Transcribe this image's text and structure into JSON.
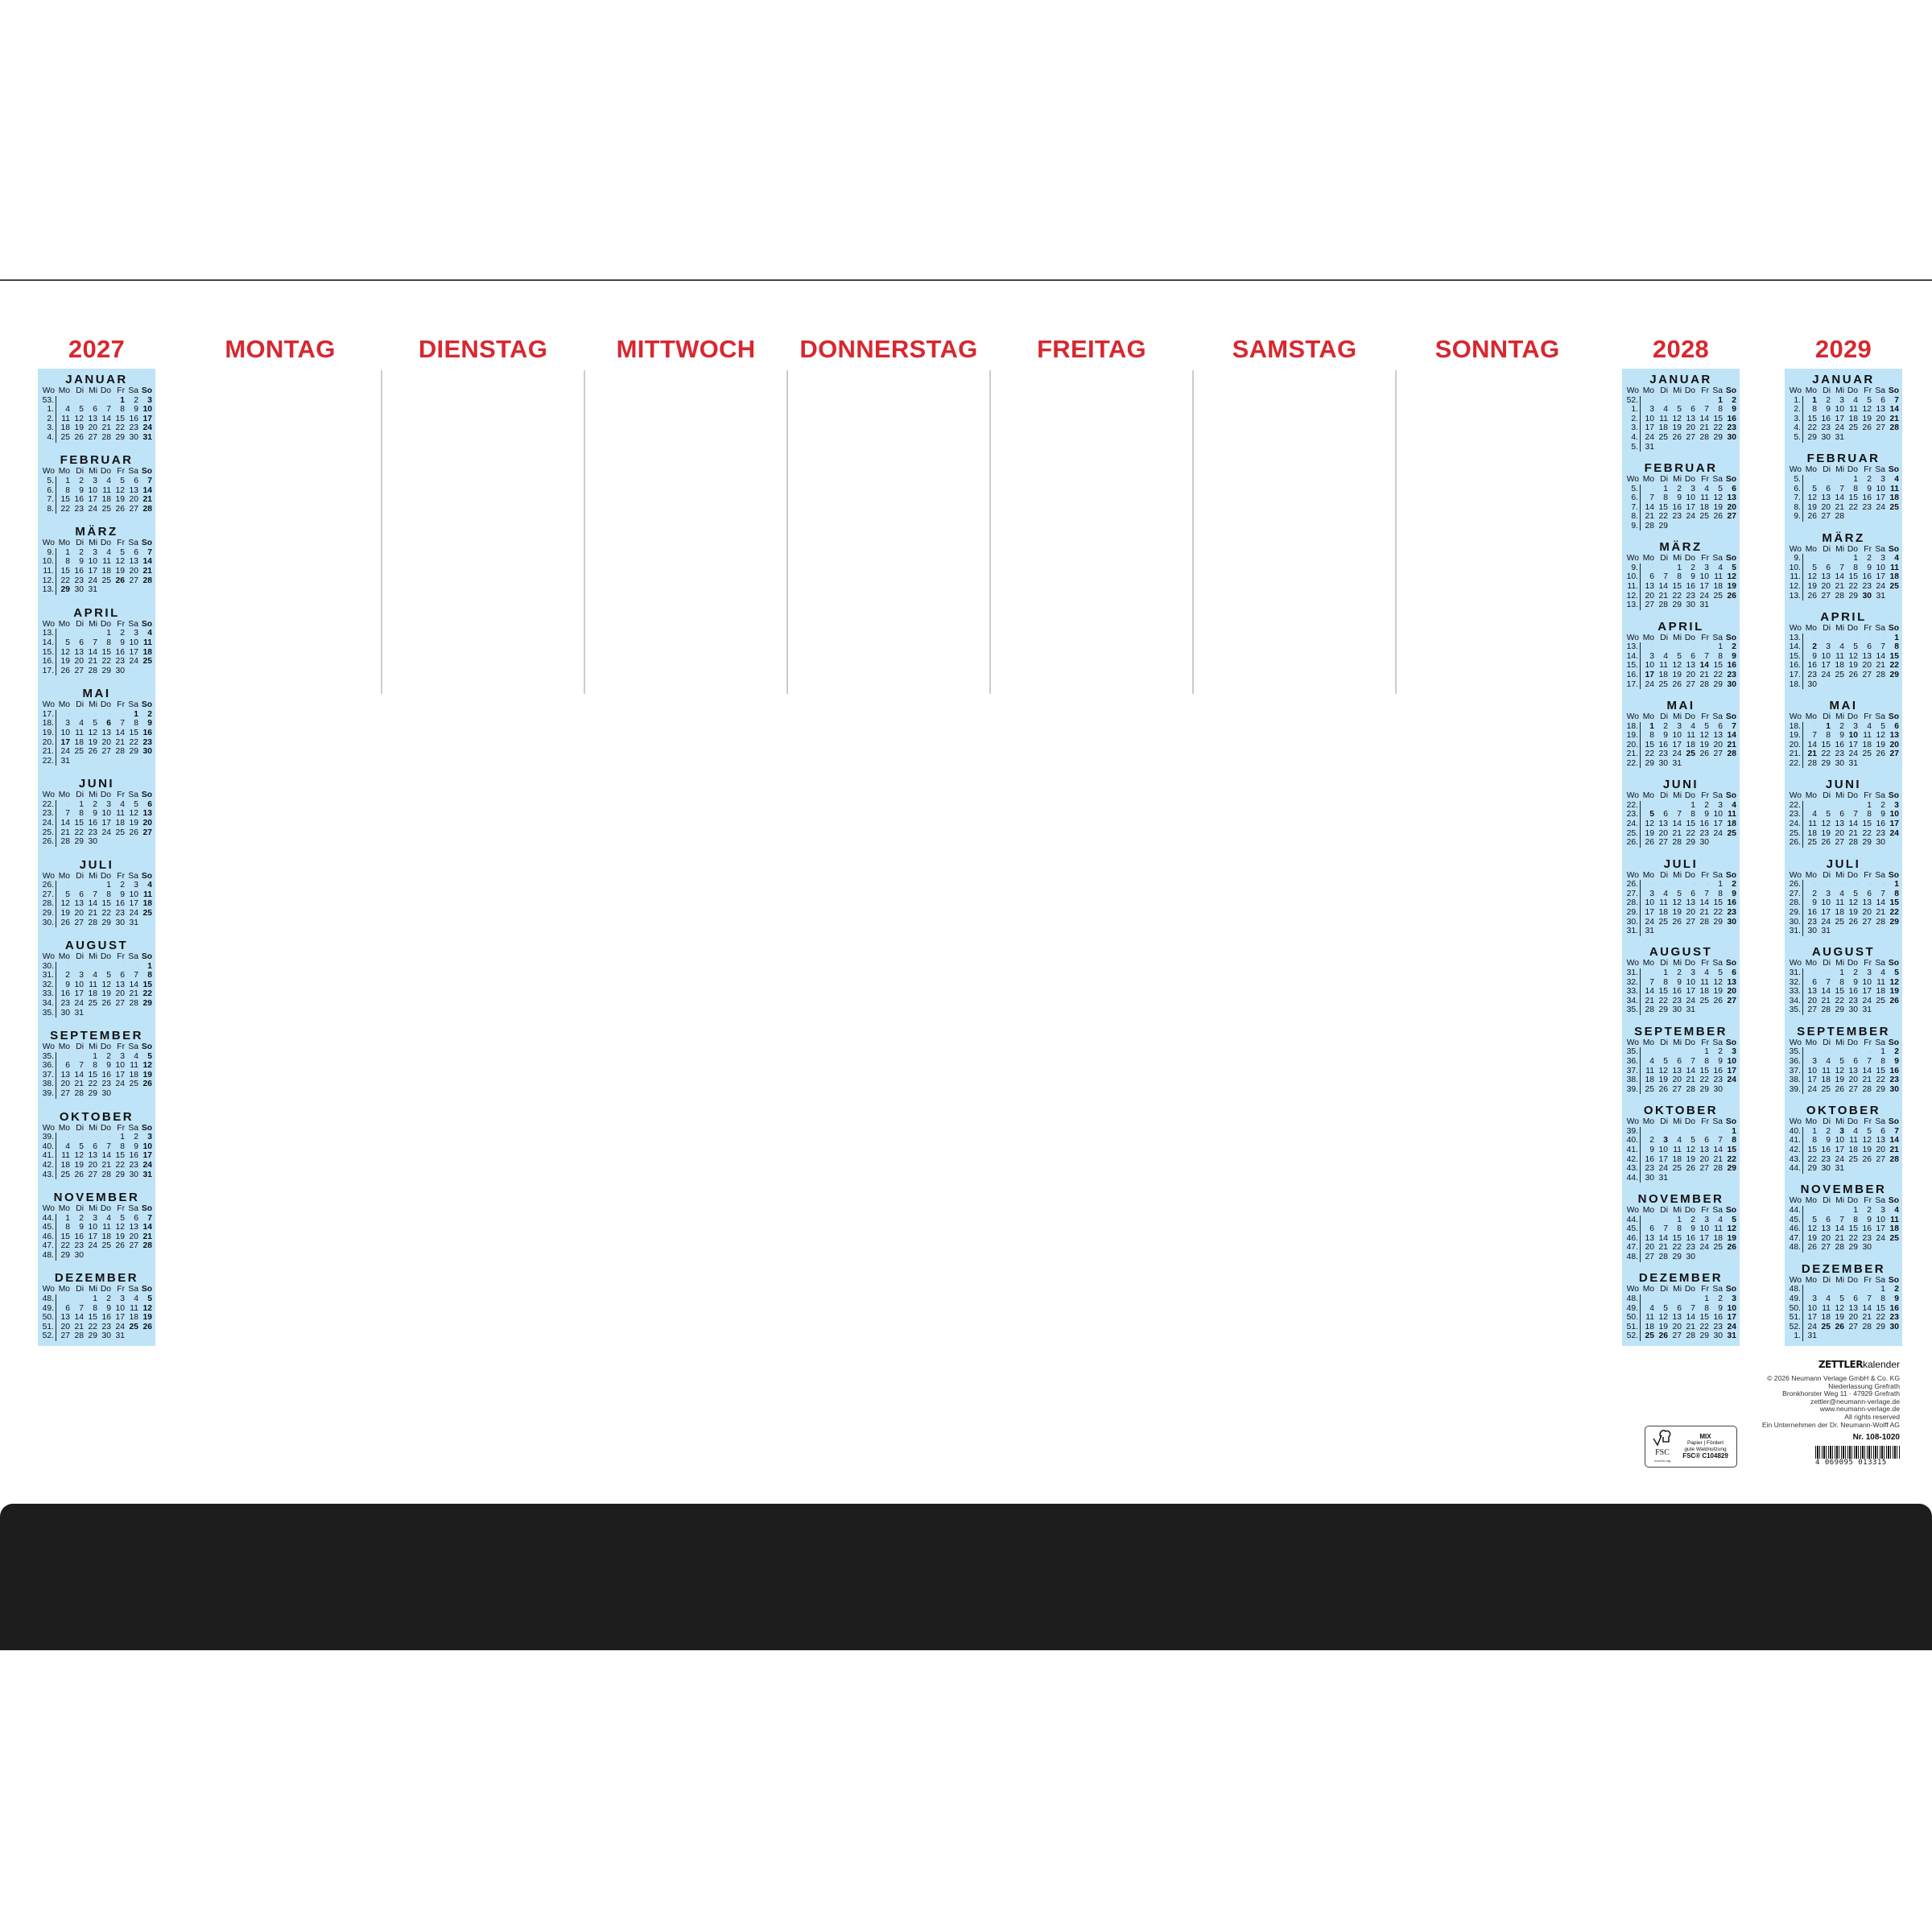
{
  "weekdays_header": [
    "MONTAG",
    "DIENSTAG",
    "MITTWOCH",
    "DONNERSTAG",
    "FREITAG",
    "SAMSTAG",
    "SONNTAG"
  ],
  "mini_header": [
    "Wo",
    "Mo",
    "Di",
    "Mi",
    "Do",
    "Fr",
    "Sa",
    "So"
  ],
  "colors": {
    "accent_red": "#d7282f",
    "calendar_blue": "#bfe3f7",
    "bar_black": "#1d1d1d"
  },
  "years": [
    {
      "year": "2027",
      "months": [
        {
          "name": "JANUAR",
          "bold": [
            1
          ],
          "rows": [
            "53 - - - - 1 2 3",
            "1 4 5 6 7 8 9 10",
            "2 11 12 13 14 15 16 17",
            "3 18 19 20 21 22 23 24",
            "4 25 26 27 28 29 30 31"
          ]
        },
        {
          "name": "FEBRUAR",
          "bold": [],
          "rows": [
            "5 1 2 3 4 5 6 7",
            "6 8 9 10 11 12 13 14",
            "7 15 16 17 18 19 20 21",
            "8 22 23 24 25 26 27 28"
          ]
        },
        {
          "name": "MÄRZ",
          "bold": [
            26,
            29
          ],
          "rows": [
            "9 1 2 3 4 5 6 7",
            "10 8 9 10 11 12 13 14",
            "11 15 16 17 18 19 20 21",
            "12 22 23 24 25 26 27 28",
            "13 29 30 31"
          ]
        },
        {
          "name": "APRIL",
          "bold": [],
          "rows": [
            "13 - - - 1 2 3 4",
            "14 5 6 7 8 9 10 11",
            "15 12 13 14 15 16 17 18",
            "16 19 20 21 22 23 24 25",
            "17 26 27 28 29 30"
          ]
        },
        {
          "name": "MAI",
          "bold": [
            1,
            6,
            17
          ],
          "rows": [
            "17 - - - - - 1 2",
            "18 3 4 5 6 7 8 9",
            "19 10 11 12 13 14 15 16",
            "20 17 18 19 20 21 22 23",
            "21 24 25 26 27 28 29 30",
            "22 31"
          ]
        },
        {
          "name": "JUNI",
          "bold": [],
          "rows": [
            "22 - 1 2 3 4 5 6",
            "23 7 8 9 10 11 12 13",
            "24 14 15 16 17 18 19 20",
            "25 21 22 23 24 25 26 27",
            "26 28 29 30"
          ]
        },
        {
          "name": "JULI",
          "bold": [],
          "rows": [
            "26 - - - 1 2 3 4",
            "27 5 6 7 8 9 10 11",
            "28 12 13 14 15 16 17 18",
            "29 19 20 21 22 23 24 25",
            "30 26 27 28 29 30 31"
          ]
        },
        {
          "name": "AUGUST",
          "bold": [],
          "rows": [
            "30 - - - - - - 1",
            "31 2 3 4 5 6 7 8",
            "32 9 10 11 12 13 14 15",
            "33 16 17 18 19 20 21 22",
            "34 23 24 25 26 27 28 29",
            "35 30 31"
          ]
        },
        {
          "name": "SEPTEMBER",
          "bold": [],
          "rows": [
            "35 - - 1 2 3 4 5",
            "36 6 7 8 9 10 11 12",
            "37 13 14 15 16 17 18 19",
            "38 20 21 22 23 24 25 26",
            "39 27 28 29 30"
          ]
        },
        {
          "name": "OKTOBER",
          "bold": [
            3
          ],
          "rows": [
            "39 - - - - 1 2 3",
            "40 4 5 6 7 8 9 10",
            "41 11 12 13 14 15 16 17",
            "42 18 19 20 21 22 23 24",
            "43 25 26 27 28 29 30 31"
          ]
        },
        {
          "name": "NOVEMBER",
          "bold": [],
          "rows": [
            "44 1 2 3 4 5 6 7",
            "45 8 9 10 11 12 13 14",
            "46 15 16 17 18 19 20 21",
            "47 22 23 24 25 26 27 28",
            "48 29 30"
          ]
        },
        {
          "name": "DEZEMBER",
          "bold": [
            25,
            26
          ],
          "rows": [
            "48 - - 1 2 3 4 5",
            "49 6 7 8 9 10 11 12",
            "50 13 14 15 16 17 18 19",
            "51 20 21 22 23 24 25 26",
            "52 27 28 29 30 31"
          ]
        }
      ]
    },
    {
      "year": "2028",
      "months": [
        {
          "name": "JANUAR",
          "bold": [
            1
          ],
          "rows": [
            "52 - - - - - 1 2",
            "1 3 4 5 6 7 8 9",
            "2 10 11 12 13 14 15 16",
            "3 17 18 19 20 21 22 23",
            "4 24 25 26 27 28 29 30",
            "5 31"
          ]
        },
        {
          "name": "FEBRUAR",
          "bold": [],
          "rows": [
            "5 - 1 2 3 4 5 6",
            "6 7 8 9 10 11 12 13",
            "7 14 15 16 17 18 19 20",
            "8 21 22 23 24 25 26 27",
            "9 28 29"
          ]
        },
        {
          "name": "MÄRZ",
          "bold": [],
          "rows": [
            "9 - - 1 2 3 4 5",
            "10 6 7 8 9 10 11 12",
            "11 13 14 15 16 17 18 19",
            "12 20 21 22 23 24 25 26",
            "13 27 28 29 30 31"
          ]
        },
        {
          "name": "APRIL",
          "bold": [
            14,
            17
          ],
          "rows": [
            "13 - - - - - 1 2",
            "14 3 4 5 6 7 8 9",
            "15 10 11 12 13 14 15 16",
            "16 17 18 19 20 21 22 23",
            "17 24 25 26 27 28 29 30"
          ]
        },
        {
          "name": "MAI",
          "bold": [
            1,
            25
          ],
          "rows": [
            "18 1 2 3 4 5 6 7",
            "19 8 9 10 11 12 13 14",
            "20 15 16 17 18 19 20 21",
            "21 22 23 24 25 26 27 28",
            "22 29 30 31"
          ]
        },
        {
          "name": "JUNI",
          "bold": [
            5
          ],
          "rows": [
            "22 - - - 1 2 3 4",
            "23 5 6 7 8 9 10 11",
            "24 12 13 14 15 16 17 18",
            "25 19 20 21 22 23 24 25",
            "26 26 27 28 29 30"
          ]
        },
        {
          "name": "JULI",
          "bold": [],
          "rows": [
            "26 - - - - - 1 2",
            "27 3 4 5 6 7 8 9",
            "28 10 11 12 13 14 15 16",
            "29 17 18 19 20 21 22 23",
            "30 24 25 26 27 28 29 30",
            "31 31"
          ]
        },
        {
          "name": "AUGUST",
          "bold": [],
          "rows": [
            "31 - 1 2 3 4 5 6",
            "32 7 8 9 10 11 12 13",
            "33 14 15 16 17 18 19 20",
            "34 21 22 23 24 25 26 27",
            "35 28 29 30 31"
          ]
        },
        {
          "name": "SEPTEMBER",
          "bold": [],
          "rows": [
            "35 - - - - 1 2 3",
            "36 4 5 6 7 8 9 10",
            "37 11 12 13 14 15 16 17",
            "38 18 19 20 21 22 23 24",
            "39 25 26 27 28 29 30"
          ]
        },
        {
          "name": "OKTOBER",
          "bold": [
            3
          ],
          "rows": [
            "39 - - - - - - 1",
            "40 2 3 4 5 6 7 8",
            "41 9 10 11 12 13 14 15",
            "42 16 17 18 19 20 21 22",
            "43 23 24 25 26 27 28 29",
            "44 30 31"
          ]
        },
        {
          "name": "NOVEMBER",
          "bold": [],
          "rows": [
            "44 - - 1 2 3 4 5",
            "45 6 7 8 9 10 11 12",
            "46 13 14 15 16 17 18 19",
            "47 20 21 22 23 24 25 26",
            "48 27 28 29 30"
          ]
        },
        {
          "name": "DEZEMBER",
          "bold": [
            25,
            26
          ],
          "rows": [
            "48 - - - - 1 2 3",
            "49 4 5 6 7 8 9 10",
            "50 11 12 13 14 15 16 17",
            "51 18 19 20 21 22 23 24",
            "52 25 26 27 28 29 30 31"
          ]
        }
      ]
    },
    {
      "year": "2029",
      "months": [
        {
          "name": "JANUAR",
          "bold": [
            1
          ],
          "rows": [
            "1 1 2 3 4 5 6 7",
            "2 8 9 10 11 12 13 14",
            "3 15 16 17 18 19 20 21",
            "4 22 23 24 25 26 27 28",
            "5 29 30 31"
          ]
        },
        {
          "name": "FEBRUAR",
          "bold": [],
          "rows": [
            "5 - - - 1 2 3 4",
            "6 5 6 7 8 9 10 11",
            "7 12 13 14 15 16 17 18",
            "8 19 20 21 22 23 24 25",
            "9 26 27 28"
          ]
        },
        {
          "name": "MÄRZ",
          "bold": [
            30
          ],
          "rows": [
            "9 - - - 1 2 3 4",
            "10 5 6 7 8 9 10 11",
            "11 12 13 14 15 16 17 18",
            "12 19 20 21 22 23 24 25",
            "13 26 27 28 29 30 31"
          ]
        },
        {
          "name": "APRIL",
          "bold": [
            2
          ],
          "rows": [
            "13 - - - - - - 1",
            "14 2 3 4 5 6 7 8",
            "15 9 10 11 12 13 14 15",
            "16 16 17 18 19 20 21 22",
            "17 23 24 25 26 27 28 29",
            "18 30"
          ]
        },
        {
          "name": "MAI",
          "bold": [
            1,
            10,
            21
          ],
          "rows": [
            "18 - 1 2 3 4 5 6",
            "19 7 8 9 10 11 12 13",
            "20 14 15 16 17 18 19 20",
            "21 21 22 23 24 25 26 27",
            "22 28 29 30 31"
          ]
        },
        {
          "name": "JUNI",
          "bold": [],
          "rows": [
            "22 - - - - 1 2 3",
            "23 4 5 6 7 8 9 10",
            "24 11 12 13 14 15 16 17",
            "25 18 19 20 21 22 23 24",
            "26 25 26 27 28 29 30"
          ]
        },
        {
          "name": "JULI",
          "bold": [],
          "rows": [
            "26 - - - - - - 1",
            "27 2 3 4 5 6 7 8",
            "28 9 10 11 12 13 14 15",
            "29 16 17 18 19 20 21 22",
            "30 23 24 25 26 27 28 29",
            "31 30 31"
          ]
        },
        {
          "name": "AUGUST",
          "bold": [],
          "rows": [
            "31 - - 1 2 3 4 5",
            "32 6 7 8 9 10 11 12",
            "33 13 14 15 16 17 18 19",
            "34 20 21 22 23 24 25 26",
            "35 27 28 29 30 31"
          ]
        },
        {
          "name": "SEPTEMBER",
          "bold": [],
          "rows": [
            "35 - - - - - 1 2",
            "36 3 4 5 6 7 8 9",
            "37 10 11 12 13 14 15 16",
            "38 17 18 19 20 21 22 23",
            "39 24 25 26 27 28 29 30"
          ]
        },
        {
          "name": "OKTOBER",
          "bold": [
            3
          ],
          "rows": [
            "40 1 2 3 4 5 6 7",
            "41 8 9 10 11 12 13 14",
            "42 15 16 17 18 19 20 21",
            "43 22 23 24 25 26 27 28",
            "44 29 30 31"
          ]
        },
        {
          "name": "NOVEMBER",
          "bold": [],
          "rows": [
            "44 - - - 1 2 3 4",
            "45 5 6 7 8 9 10 11",
            "46 12 13 14 15 16 17 18",
            "47 19 20 21 22 23 24 25",
            "48 26 27 28 29 30"
          ]
        },
        {
          "name": "DEZEMBER",
          "bold": [
            25,
            26
          ],
          "rows": [
            "48 - - - - - 1 2",
            "49 3 4 5 6 7 8 9",
            "50 10 11 12 13 14 15 16",
            "51 17 18 19 20 21 22 23",
            "52 24 25 26 27 28 29 30",
            "1 31"
          ]
        }
      ]
    }
  ],
  "footer": {
    "brand_bold": "ZETTLER",
    "brand_light": "kalender",
    "imprint": [
      "© 2026 Neumann Verlage GmbH & Co. KG",
      "Niederlassung Grefrath",
      "Bronkhorster Weg 11 · 47929 Grefrath",
      "zettler@neumann-verlage.de",
      "www.neumann-verlage.de",
      "All rights reserved",
      "Ein Unternehmen der Dr. Neumann-Wolff AG"
    ],
    "article_number": "Nr. 108-1020",
    "barcode_number": "4  069095  013315",
    "fsc": {
      "label": "FSC",
      "site": "www.fsc.org",
      "mix": "MIX",
      "text1": "Papier | Fördert",
      "text2": "gute Waldnutzung",
      "code": "FSC® C104829"
    }
  }
}
